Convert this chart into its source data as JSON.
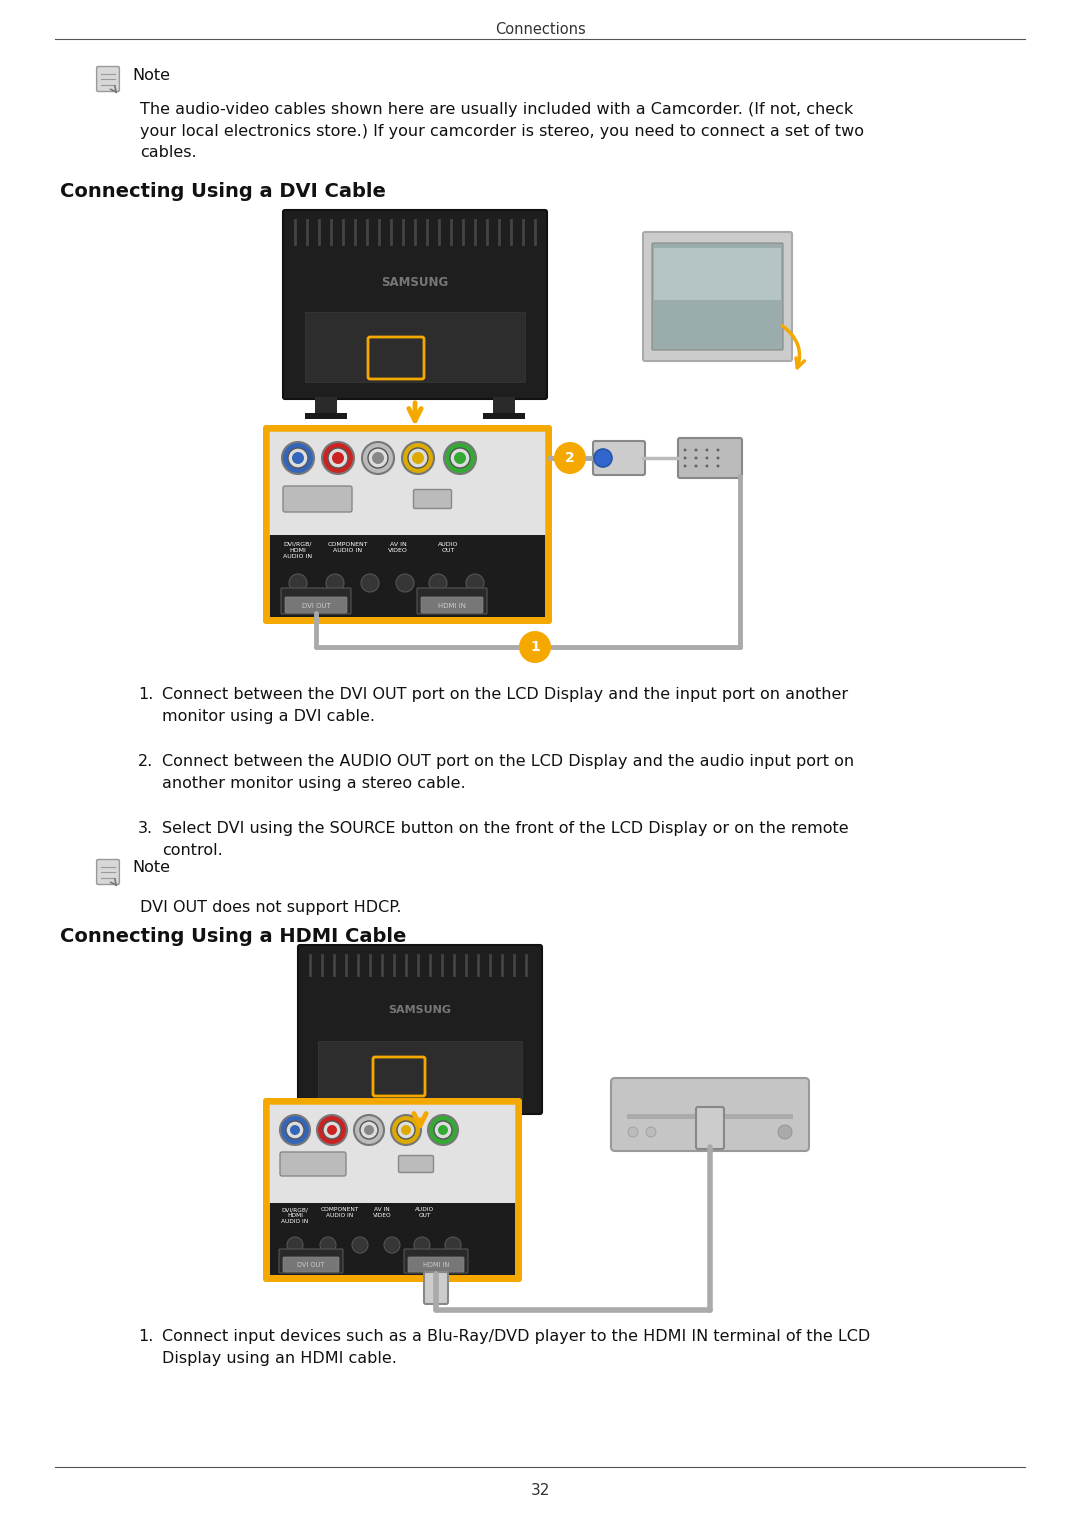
{
  "page_title": "Connections",
  "page_number": "32",
  "bg_color": "#ffffff",
  "text_color": "#111111",
  "note_text_intro": "The audio-video cables shown here are usually included with a Camcorder. (If not, check\nyour local electronics store.) If your camcorder is stereo, you need to connect a set of two\ncables.",
  "section1_title": "Connecting Using a DVI Cable",
  "section1_steps": [
    "Connect between the DVI OUT port on the LCD Display and the input port on another\nmonitor using a DVI cable.",
    "Connect between the AUDIO OUT port on the LCD Display and the audio input port on\nanother monitor using a stereo cable.",
    "Select DVI using the SOURCE button on the front of the LCD Display or on the remote\ncontrol."
  ],
  "note2_text": "DVI OUT does not support HDCP.",
  "section2_title": "Connecting Using a HDMI Cable",
  "section2_steps": [
    "Connect input devices such as a Blu-Ray/DVD player to the HDMI IN terminal of the LCD\nDisplay using an HDMI cable."
  ],
  "accent_color": "#F5A800",
  "body_fontsize": 11.5,
  "section_title_fontsize": 14
}
